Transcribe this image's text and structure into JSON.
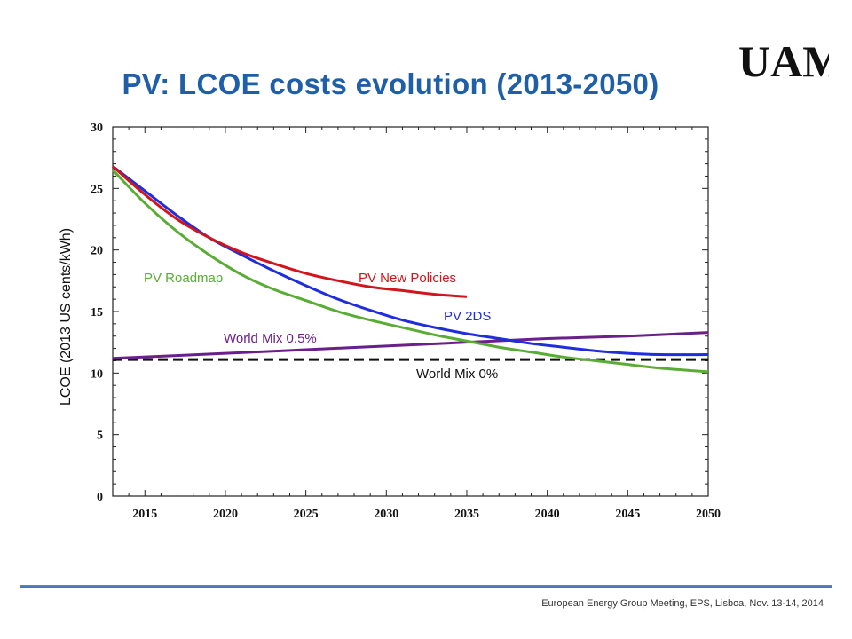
{
  "title": "PV: LCOE costs evolution (2013-2050)",
  "logo_text": "UAM",
  "footer": "European Energy Group Meeting, EPS, Lisboa, Nov. 13-14, 2014",
  "colors": {
    "title": "#1f5fa8",
    "pv_new_policies": "#d0161c",
    "pv_2ds": "#1f2ddb",
    "pv_roadmap": "#5aad34",
    "world_mix_05": "#6a1f8a",
    "world_mix_0": "#111111"
  },
  "chart_data": {
    "type": "line",
    "title": "",
    "xlabel": "",
    "ylabel": "LCOE (2013 US cents/kWh)",
    "xlim": [
      2013,
      2050
    ],
    "ylim": [
      0,
      30
    ],
    "xticks": [
      "2015",
      "2020",
      "2025",
      "2030",
      "2035",
      "2040",
      "2045",
      "2050"
    ],
    "yticks": [
      "0",
      "5",
      "10",
      "15",
      "20",
      "25",
      "30"
    ],
    "grid": false,
    "series": [
      {
        "name": "PV New Policies",
        "color": "#d0161c",
        "dash": false,
        "x": [
          2013,
          2015,
          2017,
          2019,
          2021,
          2023,
          2025,
          2027,
          2029,
          2031,
          2033,
          2035
        ],
        "y": [
          26.8,
          24.5,
          22.5,
          21.0,
          19.8,
          18.9,
          18.1,
          17.5,
          17.0,
          16.7,
          16.4,
          16.2
        ]
      },
      {
        "name": "PV 2DS",
        "color": "#1f2ddb",
        "dash": false,
        "x": [
          2013,
          2015,
          2017,
          2019,
          2021,
          2023,
          2025,
          2027,
          2029,
          2031,
          2033,
          2035,
          2037,
          2039,
          2041,
          2043,
          2045,
          2047,
          2050
        ],
        "y": [
          26.8,
          24.8,
          22.8,
          21.0,
          19.6,
          18.3,
          17.1,
          16.0,
          15.1,
          14.3,
          13.7,
          13.2,
          12.8,
          12.4,
          12.1,
          11.8,
          11.6,
          11.5,
          11.5
        ]
      },
      {
        "name": "PV Roadmap",
        "color": "#5aad34",
        "dash": false,
        "x": [
          2013,
          2015,
          2017,
          2019,
          2021,
          2023,
          2025,
          2027,
          2029,
          2031,
          2033,
          2035,
          2037,
          2039,
          2041,
          2043,
          2045,
          2047,
          2050
        ],
        "y": [
          26.5,
          23.8,
          21.5,
          19.6,
          18.0,
          16.8,
          15.9,
          15.0,
          14.3,
          13.7,
          13.1,
          12.6,
          12.1,
          11.7,
          11.3,
          11.0,
          10.7,
          10.4,
          10.1
        ]
      },
      {
        "name": "World Mix 0.5%",
        "color": "#6a1f8a",
        "dash": false,
        "x": [
          2013,
          2020,
          2025,
          2030,
          2035,
          2040,
          2045,
          2050
        ],
        "y": [
          11.2,
          11.6,
          11.9,
          12.2,
          12.5,
          12.8,
          13.0,
          13.3
        ]
      },
      {
        "name": "World Mix 0%",
        "color": "#111111",
        "dash": true,
        "x": [
          2013,
          2050
        ],
        "y": [
          11.1,
          11.1
        ]
      }
    ]
  }
}
